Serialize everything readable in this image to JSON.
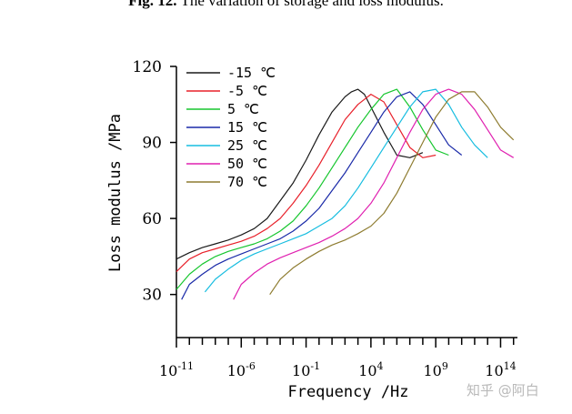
{
  "caption": {
    "label": "Fig. 12.",
    "text": "The variation of storage and loss modulus."
  },
  "watermark": "知乎 @阿白",
  "chart_data": {
    "type": "line",
    "title": "",
    "xlabel": "Frequency /Hz",
    "ylabel": "Loss modulus /MPa",
    "x_scale": "log",
    "xlim": [
      -11,
      15.3
    ],
    "ylim": [
      13,
      120
    ],
    "x_ticks": [
      {
        "base": "10",
        "exp": "-11",
        "v": -11
      },
      {
        "base": "10",
        "exp": "-6",
        "v": -6
      },
      {
        "base": "10",
        "exp": "-1",
        "v": -1
      },
      {
        "base": "10",
        "exp": "4",
        "v": 4
      },
      {
        "base": "10",
        "exp": "9",
        "v": 9
      },
      {
        "base": "10",
        "exp": "14",
        "v": 14
      }
    ],
    "y_ticks": [
      "30",
      "60",
      "90",
      "120"
    ],
    "legend_position": "top-left",
    "series": [
      {
        "name": "-15 ℃",
        "color": "#1a1a1a",
        "x": [
          -11,
          -10,
          -9,
          -8,
          -7,
          -6,
          -5,
          -4,
          -3,
          -2,
          -1,
          0,
          1,
          2,
          2.5,
          3,
          3.5,
          4,
          5,
          6,
          7,
          8
        ],
        "y": [
          44,
          46.5,
          48.5,
          50,
          51.5,
          53.5,
          56,
          60,
          67,
          74,
          83,
          93,
          102,
          108,
          110,
          111,
          109,
          104,
          94,
          85,
          84,
          86
        ]
      },
      {
        "name": "-5 ℃",
        "color": "#e8202a",
        "x": [
          -11,
          -10,
          -9,
          -8,
          -7,
          -6,
          -5,
          -4,
          -3,
          -2,
          -1,
          0,
          1,
          2,
          3,
          4,
          5,
          6,
          7,
          8,
          9
        ],
        "y": [
          39,
          44,
          46.5,
          48,
          49.5,
          51,
          53,
          56,
          60,
          66,
          73,
          81,
          90,
          99,
          105,
          109,
          106,
          97,
          88,
          84,
          85
        ]
      },
      {
        "name": "5 ℃",
        "color": "#16c62e",
        "x": [
          -11,
          -10,
          -9,
          -8,
          -7,
          -6,
          -5,
          -4,
          -3,
          -2,
          -1,
          0,
          1,
          2,
          3,
          4,
          5,
          6,
          7,
          8,
          9,
          10
        ],
        "y": [
          32,
          38,
          42,
          45,
          47,
          48.5,
          50,
          52,
          55,
          59,
          65,
          72,
          80,
          88,
          96,
          103,
          109,
          111,
          104,
          95,
          87,
          85
        ]
      },
      {
        "name": "15 ℃",
        "color": "#1a2aa8",
        "x": [
          -10.6,
          -10,
          -9,
          -8,
          -7,
          -6,
          -5,
          -4,
          -3,
          -2,
          -1,
          0,
          1,
          2,
          3,
          4,
          5,
          6,
          7,
          8,
          9,
          10,
          11
        ],
        "y": [
          28,
          34,
          38,
          41.5,
          44,
          46,
          48,
          50,
          52,
          55,
          59,
          64,
          71,
          78,
          86,
          94,
          102,
          108,
          110,
          105,
          97,
          89,
          85
        ]
      },
      {
        "name": "25 ℃",
        "color": "#17bde0",
        "x": [
          -8.8,
          -8,
          -7,
          -6,
          -5,
          -4,
          -3,
          -2,
          -1,
          0,
          1,
          2,
          3,
          4,
          5,
          6,
          7,
          8,
          9,
          10,
          11,
          12,
          13
        ],
        "y": [
          31,
          36,
          40,
          43.5,
          46,
          48,
          50,
          52,
          54,
          57,
          60,
          65,
          72,
          80,
          88,
          96,
          104,
          110,
          111,
          105,
          96,
          89,
          84
        ]
      },
      {
        "name": "50 ℃",
        "color": "#e020b0",
        "x": [
          -6.6,
          -6,
          -5,
          -4,
          -3,
          -2,
          -1,
          0,
          1,
          2,
          3,
          4,
          5,
          6,
          7,
          8,
          9,
          10,
          11,
          12,
          13,
          14,
          15
        ],
        "y": [
          28,
          34,
          38.5,
          42,
          44.5,
          46.5,
          48.5,
          50.5,
          53,
          56,
          60,
          66,
          74,
          84,
          94,
          103,
          109,
          111,
          109,
          103,
          95,
          87,
          84
        ]
      },
      {
        "name": "70 ℃",
        "color": "#8e7c30",
        "x": [
          -3.8,
          -3,
          -2,
          -1,
          0,
          1,
          2,
          3,
          4,
          5,
          6,
          7,
          8,
          9,
          10,
          11,
          12,
          13,
          14,
          15
        ],
        "y": [
          30,
          36,
          40.5,
          44,
          47,
          49.5,
          51.5,
          54,
          57,
          62,
          70,
          80,
          90,
          100,
          107,
          110,
          110,
          104,
          96,
          91
        ]
      }
    ]
  }
}
